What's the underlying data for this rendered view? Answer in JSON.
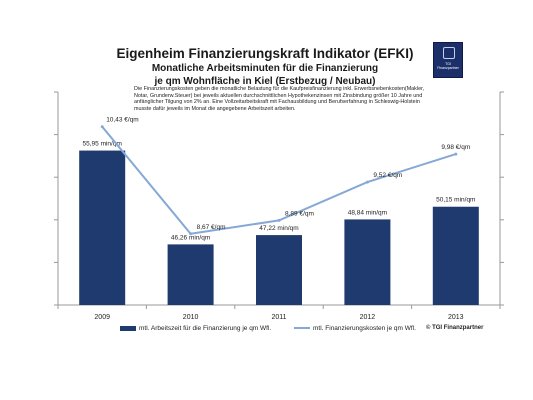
{
  "title": "Eigenheim Finanzierungskraft Indikator (EFKI)",
  "subtitle_1": "Monatliche Arbeitsminuten für die Finanzierung",
  "subtitle_2": "je qm Wohnfläche in Kiel (Erstbezug / Neubau)",
  "description": "Die Finanzierungskosten geben die monatliche Belastung für die Kaufpreisfinanzierung inkl. Erwerbsnebenkosten(Makler, Notar, Grunderw.Steuer) bei jeweils aktuellen durchschnittlichen Hypothekenzinsen mit Zinsbindung größer 10 Jahre und anfänglicher Tilgung von 2% an. Eine Vollzeitarbeitskraft mit Fachausbildung und Berufserfahrung in Schleswig-Holstein musste dafür jeweils im Monat die angegebene Arbeitszeit arbeiten.",
  "logo_text": "TGI Finanzpartner",
  "copyright": "© TGI Finanzpartner",
  "colors": {
    "bar": "#1f3a6e",
    "line": "#86a8d6",
    "axis": "#9a9a9a"
  },
  "chart_data": {
    "type": "bar",
    "categories": [
      "2009",
      "2010",
      "2011",
      "2012",
      "2013"
    ],
    "series": [
      {
        "name": "mtl. Arbeitszeit für die Finanzierung je qm Wfl.",
        "type": "bar",
        "axis": "left",
        "values": [
          55.95,
          46.26,
          47.22,
          48.84,
          50.15
        ],
        "labels": [
          "55,95 min/qm",
          "46,26 min/qm",
          "47,22 min/qm",
          "48,84 min/qm",
          "50,15 min/qm"
        ]
      },
      {
        "name": "mtl. Finanzierungskosten je qm Wfl.",
        "type": "line",
        "axis": "right",
        "values": [
          10.43,
          8.67,
          8.89,
          9.52,
          9.98
        ],
        "labels": [
          "10,43 €/qm",
          "8,67 €/qm",
          "8,89 €/qm",
          "9,52 €/qm",
          "9,98 €/qm"
        ]
      }
    ],
    "left_ylim": [
      40,
      62
    ],
    "right_ylim": [
      7.5,
      11.0
    ],
    "grid": false,
    "legend": "bottom"
  }
}
